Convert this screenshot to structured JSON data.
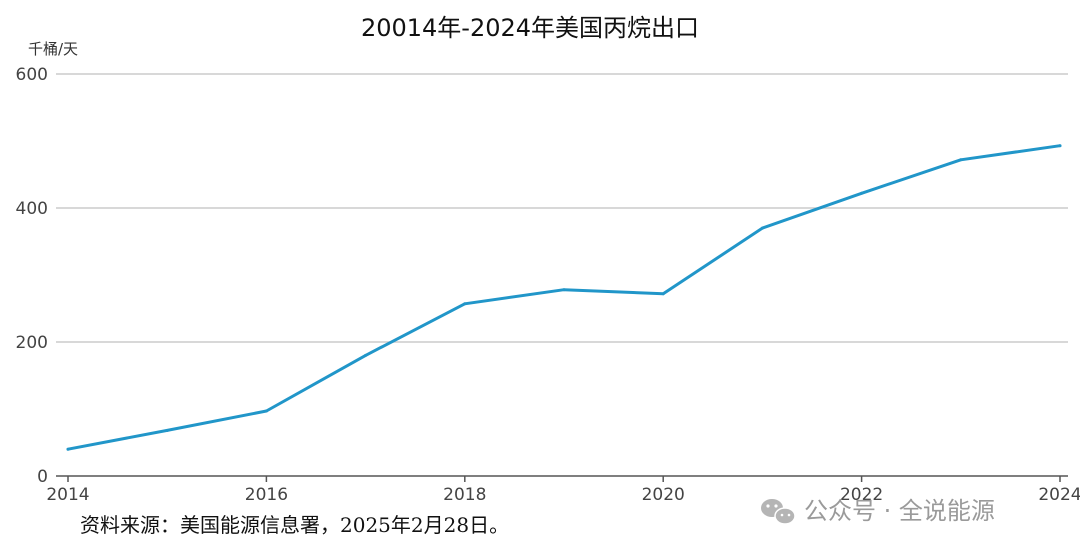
{
  "chart_data": {
    "type": "line",
    "title": "20014年-2024年美国丙烷出口",
    "unit_label": "千桶/天",
    "x": [
      2014,
      2015,
      2016,
      2017,
      2018,
      2019,
      2020,
      2021,
      2022,
      2023,
      2024
    ],
    "x_tick_labels": [
      "2014",
      "2016",
      "2018",
      "2020",
      "2022",
      "2024"
    ],
    "y_tick_labels": [
      "0",
      "200",
      "400",
      "600"
    ],
    "series": [
      {
        "values": [
          40,
          68,
          97,
          180,
          257,
          278,
          272,
          370,
          422,
          472,
          493
        ]
      }
    ],
    "xlim": [
      2014,
      2024
    ],
    "ylim": [
      0,
      600
    ],
    "grid": "horizontal",
    "line_color": "#2196c9",
    "grid_color": "#cccccc"
  },
  "source_text": "资料来源：美国能源信息署，2025年2月28日。",
  "watermark": {
    "icon": "wechat-icon",
    "text": "公众号 · 全说能源"
  }
}
